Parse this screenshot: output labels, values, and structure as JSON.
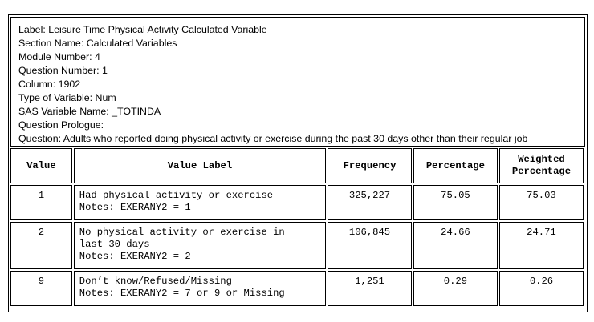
{
  "info": {
    "label": "Label: Leisure Time Physical Activity Calculated Variable",
    "section": "Section Name: Calculated Variables",
    "module": "Module Number: 4",
    "question_number": "Question Number: 1",
    "column": "Column: 1902",
    "type": "Type of Variable: Num",
    "sas_name": "SAS Variable Name: _TOTINDA",
    "prologue": "Question Prologue:",
    "question": "Question:  Adults who reported doing physical activity or exercise during the past 30 days other than their regular job"
  },
  "table": {
    "headers": {
      "value": "Value",
      "value_label": "Value Label",
      "frequency": "Frequency",
      "percentage": "Percentage",
      "weighted_line1": "Weighted",
      "weighted_line2": "Percentage"
    },
    "rows": [
      {
        "value": "1",
        "label_lines": [
          "Had physical activity or exercise",
          "Notes: EXERANY2 = 1"
        ],
        "frequency": "325,227",
        "percentage": "75.05",
        "weighted": "75.03"
      },
      {
        "value": "2",
        "label_lines": [
          "No physical activity or exercise in",
          "last 30 days",
          "Notes: EXERANY2 = 2"
        ],
        "frequency": "106,845",
        "percentage": "24.66",
        "weighted": "24.71"
      },
      {
        "value": "9",
        "label_lines": [
          "Don’t know/Refused/Missing",
          "Notes: EXERANY2 = 7 or 9 or Missing"
        ],
        "frequency": "1,251",
        "percentage": "0.29",
        "weighted": "0.26"
      }
    ]
  }
}
